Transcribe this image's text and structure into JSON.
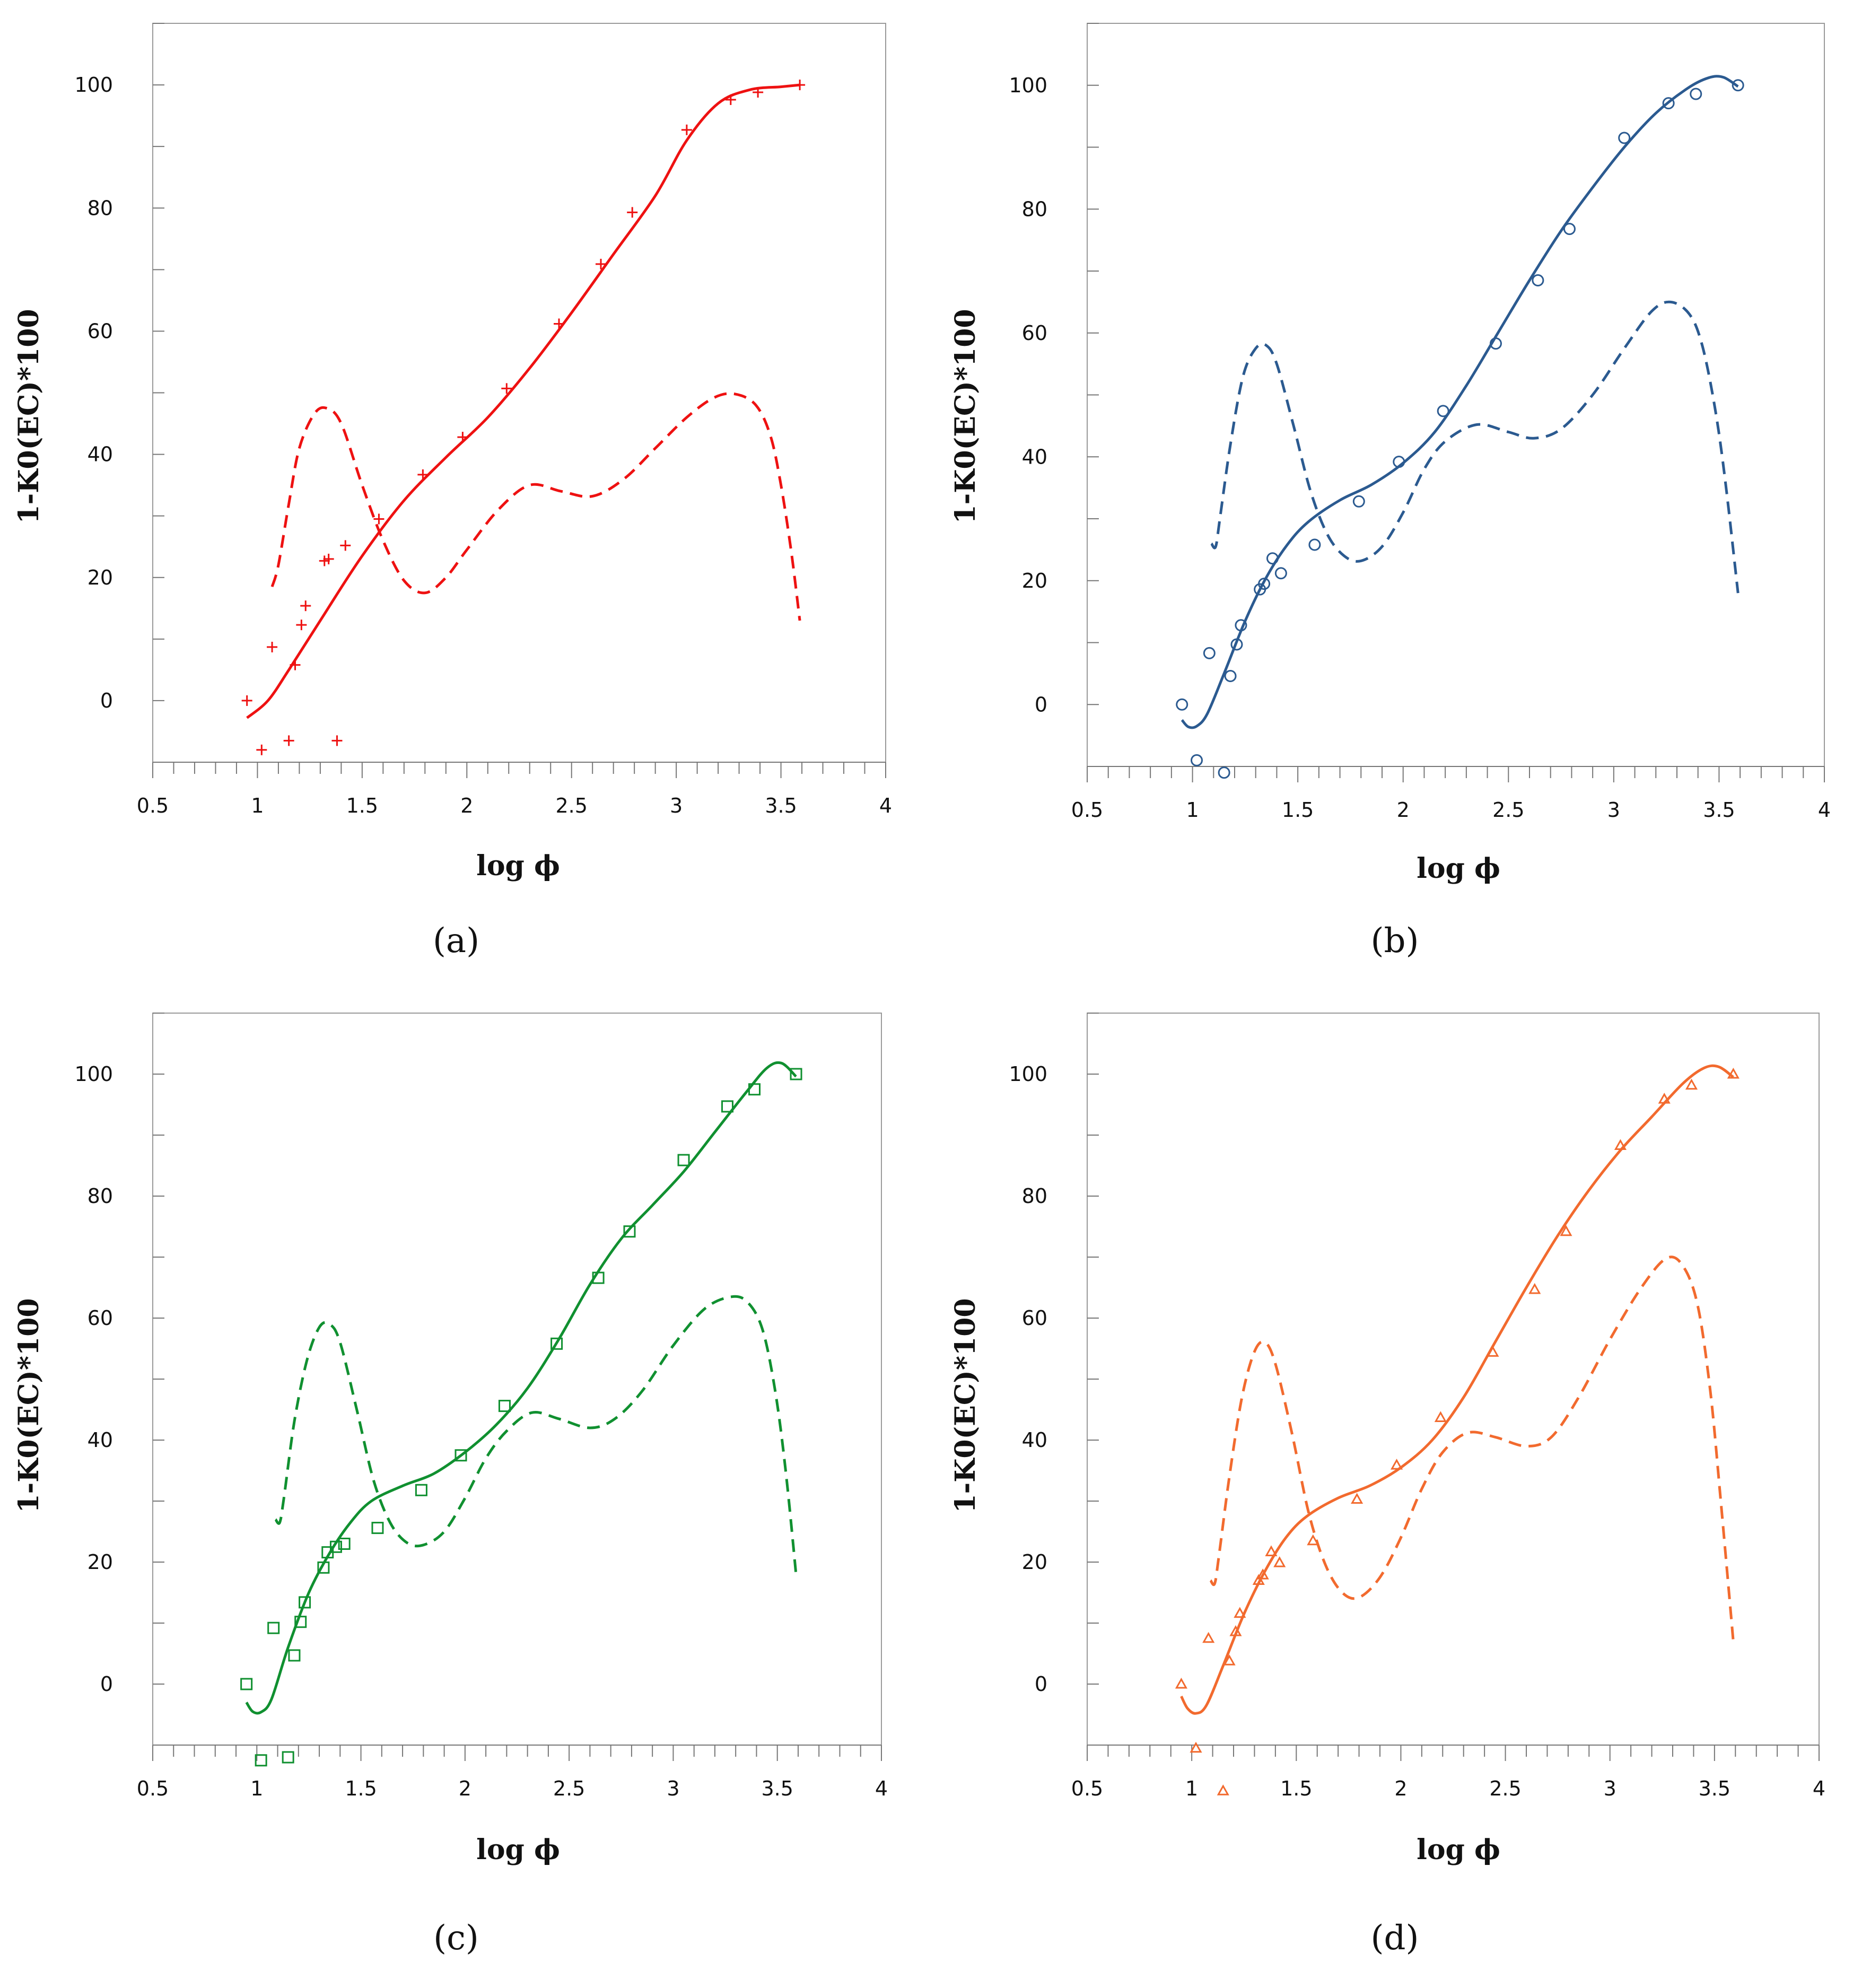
{
  "chart_data": [
    {
      "type": "scatter",
      "panel_label": "(a)",
      "xlabel": "log ϕ",
      "ylabel": "1-K0(EC)*100",
      "xlim": [
        0.5,
        4
      ],
      "ylim": [
        -10,
        110
      ],
      "x_ticks": [
        "0.5",
        "1",
        "1.5",
        "2",
        "2.5",
        "3",
        "3.5",
        "4"
      ],
      "y_ticks": [
        "0",
        "20",
        "40",
        "60",
        "80",
        "100"
      ],
      "color": "#ee1111",
      "marker": "plus",
      "points": [
        [
          0.95,
          0
        ],
        [
          1.02,
          -8
        ],
        [
          1.07,
          8.7
        ],
        [
          1.15,
          -6.5
        ],
        [
          1.18,
          5.8
        ],
        [
          1.21,
          12.3
        ],
        [
          1.23,
          15.4
        ],
        [
          1.32,
          22.7
        ],
        [
          1.34,
          23
        ],
        [
          1.38,
          -6.5
        ],
        [
          1.42,
          25.2
        ],
        [
          1.58,
          29.5
        ],
        [
          1.79,
          36.7
        ],
        [
          1.98,
          42.8
        ],
        [
          2.19,
          50.7
        ],
        [
          2.44,
          61.2
        ],
        [
          2.64,
          70.9
        ],
        [
          2.79,
          79.3
        ],
        [
          3.05,
          92.7
        ],
        [
          3.26,
          97.6
        ],
        [
          3.39,
          98.8
        ],
        [
          3.59,
          100
        ]
      ],
      "fit_curve": [
        [
          0.95,
          -2.8
        ],
        [
          1.05,
          0
        ],
        [
          1.15,
          5
        ],
        [
          1.3,
          13
        ],
        [
          1.5,
          23.5
        ],
        [
          1.7,
          32.5
        ],
        [
          1.9,
          39.5
        ],
        [
          2.1,
          46
        ],
        [
          2.3,
          54
        ],
        [
          2.5,
          63
        ],
        [
          2.7,
          72.5
        ],
        [
          2.9,
          82
        ],
        [
          3.05,
          91
        ],
        [
          3.2,
          97
        ],
        [
          3.35,
          99.2
        ],
        [
          3.5,
          99.7
        ],
        [
          3.59,
          100
        ]
      ],
      "derivative_curve": [
        [
          1.07,
          18.5
        ],
        [
          1.1,
          22
        ],
        [
          1.15,
          32
        ],
        [
          1.2,
          41
        ],
        [
          1.27,
          46.5
        ],
        [
          1.33,
          47.5
        ],
        [
          1.4,
          45
        ],
        [
          1.5,
          35
        ],
        [
          1.6,
          26
        ],
        [
          1.7,
          19.5
        ],
        [
          1.8,
          17.5
        ],
        [
          1.9,
          20
        ],
        [
          2.0,
          24.5
        ],
        [
          2.15,
          31
        ],
        [
          2.3,
          35
        ],
        [
          2.45,
          34
        ],
        [
          2.6,
          33.2
        ],
        [
          2.75,
          36
        ],
        [
          2.9,
          41
        ],
        [
          3.05,
          46
        ],
        [
          3.18,
          49.2
        ],
        [
          3.28,
          49.8
        ],
        [
          3.38,
          48
        ],
        [
          3.45,
          43
        ],
        [
          3.5,
          35
        ],
        [
          3.55,
          24
        ],
        [
          3.59,
          13
        ]
      ]
    },
    {
      "type": "scatter",
      "panel_label": "(b)",
      "xlabel": "log ϕ",
      "ylabel": "1-K0(EC)*100",
      "xlim": [
        0.5,
        4
      ],
      "ylim": [
        -10,
        110
      ],
      "x_ticks": [
        "0.5",
        "1",
        "1.5",
        "2",
        "2.5",
        "3",
        "3.5",
        "4"
      ],
      "y_ticks": [
        "0",
        "20",
        "40",
        "60",
        "80",
        "100"
      ],
      "color": "#2b5a90",
      "marker": "circle",
      "points": [
        [
          0.95,
          0
        ],
        [
          1.02,
          -9
        ],
        [
          1.08,
          8.3
        ],
        [
          1.15,
          -11
        ],
        [
          1.18,
          4.6
        ],
        [
          1.21,
          9.7
        ],
        [
          1.23,
          12.8
        ],
        [
          1.32,
          18.6
        ],
        [
          1.34,
          19.5
        ],
        [
          1.38,
          23.6
        ],
        [
          1.42,
          21.2
        ],
        [
          1.58,
          25.8
        ],
        [
          1.79,
          32.8
        ],
        [
          1.98,
          39.2
        ],
        [
          2.19,
          47.4
        ],
        [
          2.44,
          58.3
        ],
        [
          2.64,
          68.5
        ],
        [
          2.79,
          76.8
        ],
        [
          3.05,
          91.5
        ],
        [
          3.26,
          97.1
        ],
        [
          3.39,
          98.6
        ],
        [
          3.59,
          100
        ]
      ],
      "fit_curve": [
        [
          0.95,
          -2.5
        ],
        [
          0.98,
          -3.6
        ],
        [
          1.02,
          -3.5
        ],
        [
          1.07,
          -1.5
        ],
        [
          1.15,
          5
        ],
        [
          1.25,
          13.5
        ],
        [
          1.35,
          20.5
        ],
        [
          1.45,
          25.8
        ],
        [
          1.55,
          29.5
        ],
        [
          1.7,
          33
        ],
        [
          1.85,
          35.5
        ],
        [
          2.0,
          39
        ],
        [
          2.15,
          44
        ],
        [
          2.3,
          51.5
        ],
        [
          2.45,
          60
        ],
        [
          2.6,
          68.5
        ],
        [
          2.75,
          76.5
        ],
        [
          2.9,
          83.5
        ],
        [
          3.05,
          90
        ],
        [
          3.2,
          95.5
        ],
        [
          3.35,
          99.5
        ],
        [
          3.45,
          101.2
        ],
        [
          3.52,
          101.3
        ],
        [
          3.59,
          99.8
        ]
      ],
      "derivative_curve": [
        [
          1.09,
          26
        ],
        [
          1.11,
          25.5
        ],
        [
          1.13,
          30
        ],
        [
          1.18,
          42
        ],
        [
          1.24,
          53
        ],
        [
          1.3,
          57.5
        ],
        [
          1.35,
          58
        ],
        [
          1.4,
          55
        ],
        [
          1.48,
          45
        ],
        [
          1.56,
          34.5
        ],
        [
          1.64,
          27.5
        ],
        [
          1.72,
          24
        ],
        [
          1.8,
          23.2
        ],
        [
          1.9,
          25.5
        ],
        [
          2.0,
          31
        ],
        [
          2.1,
          38
        ],
        [
          2.2,
          42.5
        ],
        [
          2.35,
          45.2
        ],
        [
          2.5,
          44
        ],
        [
          2.62,
          43
        ],
        [
          2.75,
          44.5
        ],
        [
          2.9,
          50
        ],
        [
          3.05,
          57.5
        ],
        [
          3.18,
          63.5
        ],
        [
          3.27,
          65
        ],
        [
          3.36,
          63
        ],
        [
          3.42,
          58
        ],
        [
          3.48,
          48
        ],
        [
          3.53,
          36
        ],
        [
          3.59,
          18
        ]
      ]
    },
    {
      "type": "scatter",
      "panel_label": "(c)",
      "xlabel": "log ϕ",
      "ylabel": "1-K0(EC)*100",
      "xlim": [
        0.5,
        4
      ],
      "ylim": [
        -10,
        110
      ],
      "x_ticks": [
        "0.5",
        "1",
        "1.5",
        "2",
        "2.5",
        "3",
        "3.5",
        "4"
      ],
      "y_ticks": [
        "0",
        "20",
        "40",
        "60",
        "80",
        "100"
      ],
      "color": "#109030",
      "marker": "square",
      "points": [
        [
          0.95,
          0
        ],
        [
          1.02,
          -12.5
        ],
        [
          1.08,
          9.2
        ],
        [
          1.15,
          -12
        ],
        [
          1.18,
          4.7
        ],
        [
          1.21,
          10.2
        ],
        [
          1.23,
          13.4
        ],
        [
          1.32,
          19.1
        ],
        [
          1.34,
          21.6
        ],
        [
          1.38,
          22.5
        ],
        [
          1.42,
          23
        ],
        [
          1.58,
          25.6
        ],
        [
          1.79,
          31.8
        ],
        [
          1.98,
          37.5
        ],
        [
          2.19,
          45.6
        ],
        [
          2.44,
          55.8
        ],
        [
          2.64,
          66.6
        ],
        [
          2.79,
          74.2
        ],
        [
          3.05,
          85.9
        ],
        [
          3.26,
          94.7
        ],
        [
          3.39,
          97.5
        ],
        [
          3.59,
          100
        ]
      ],
      "fit_curve": [
        [
          0.95,
          -3
        ],
        [
          0.98,
          -4.5
        ],
        [
          1.02,
          -4.6
        ],
        [
          1.07,
          -2.5
        ],
        [
          1.15,
          6
        ],
        [
          1.25,
          15
        ],
        [
          1.35,
          21.5
        ],
        [
          1.45,
          26.5
        ],
        [
          1.55,
          30
        ],
        [
          1.7,
          32.5
        ],
        [
          1.85,
          34.5
        ],
        [
          2.0,
          38
        ],
        [
          2.15,
          42.5
        ],
        [
          2.3,
          48.5
        ],
        [
          2.45,
          56.5
        ],
        [
          2.6,
          65.5
        ],
        [
          2.75,
          73
        ],
        [
          2.9,
          78.5
        ],
        [
          3.05,
          84
        ],
        [
          3.2,
          90.5
        ],
        [
          3.35,
          97
        ],
        [
          3.45,
          101
        ],
        [
          3.52,
          101.8
        ],
        [
          3.59,
          99.6
        ]
      ],
      "derivative_curve": [
        [
          1.09,
          27
        ],
        [
          1.11,
          26.5
        ],
        [
          1.13,
          30.5
        ],
        [
          1.18,
          43
        ],
        [
          1.24,
          53
        ],
        [
          1.3,
          58.5
        ],
        [
          1.35,
          59
        ],
        [
          1.4,
          56
        ],
        [
          1.48,
          45
        ],
        [
          1.56,
          33.5
        ],
        [
          1.64,
          26.5
        ],
        [
          1.72,
          23.2
        ],
        [
          1.8,
          22.8
        ],
        [
          1.9,
          25
        ],
        [
          2.0,
          30.5
        ],
        [
          2.1,
          37
        ],
        [
          2.2,
          41.5
        ],
        [
          2.32,
          44.5
        ],
        [
          2.45,
          43.5
        ],
        [
          2.6,
          42
        ],
        [
          2.72,
          43.5
        ],
        [
          2.85,
          48
        ],
        [
          3.0,
          55.5
        ],
        [
          3.15,
          61.5
        ],
        [
          3.28,
          63.5
        ],
        [
          3.36,
          62.5
        ],
        [
          3.43,
          58
        ],
        [
          3.49,
          48
        ],
        [
          3.54,
          35
        ],
        [
          3.59,
          18
        ]
      ]
    },
    {
      "type": "scatter",
      "panel_label": "(d)",
      "xlabel": "log ϕ",
      "ylabel": "1-K0(EC)*100",
      "xlim": [
        0.5,
        4
      ],
      "ylim": [
        -10,
        110
      ],
      "x_ticks": [
        "0.5",
        "1",
        "1.5",
        "2",
        "2.5",
        "3",
        "3.5",
        "4"
      ],
      "y_ticks": [
        "0",
        "20",
        "40",
        "60",
        "80",
        "100"
      ],
      "color": "#f26a2e",
      "marker": "triangle",
      "points": [
        [
          0.95,
          0
        ],
        [
          1.02,
          -10.5
        ],
        [
          1.08,
          7.5
        ],
        [
          1.15,
          -17.5
        ],
        [
          1.18,
          3.8
        ],
        [
          1.21,
          8.6
        ],
        [
          1.23,
          11.6
        ],
        [
          1.32,
          17
        ],
        [
          1.34,
          17.9
        ],
        [
          1.38,
          21.7
        ],
        [
          1.42,
          19.9
        ],
        [
          1.58,
          23.5
        ],
        [
          1.79,
          30.3
        ],
        [
          1.98,
          35.9
        ],
        [
          2.19,
          43.7
        ],
        [
          2.44,
          54.4
        ],
        [
          2.64,
          64.7
        ],
        [
          2.79,
          74.2
        ],
        [
          3.05,
          88.3
        ],
        [
          3.26,
          95.9
        ],
        [
          3.39,
          98.2
        ],
        [
          3.59,
          100
        ]
      ],
      "fit_curve": [
        [
          0.95,
          -2
        ],
        [
          0.98,
          -4
        ],
        [
          1.02,
          -4.8
        ],
        [
          1.07,
          -3.5
        ],
        [
          1.15,
          3
        ],
        [
          1.25,
          11.5
        ],
        [
          1.35,
          18.5
        ],
        [
          1.45,
          24
        ],
        [
          1.55,
          27.5
        ],
        [
          1.7,
          30.5
        ],
        [
          1.85,
          32.5
        ],
        [
          2.0,
          35.5
        ],
        [
          2.15,
          40
        ],
        [
          2.3,
          47
        ],
        [
          2.45,
          56
        ],
        [
          2.6,
          65
        ],
        [
          2.75,
          73.5
        ],
        [
          2.9,
          81
        ],
        [
          3.05,
          87.5
        ],
        [
          3.2,
          93
        ],
        [
          3.35,
          98.5
        ],
        [
          3.45,
          101
        ],
        [
          3.52,
          101.2
        ],
        [
          3.59,
          99.5
        ]
      ],
      "derivative_curve": [
        [
          1.09,
          17
        ],
        [
          1.11,
          16.5
        ],
        [
          1.13,
          21
        ],
        [
          1.18,
          34
        ],
        [
          1.24,
          47
        ],
        [
          1.3,
          54.5
        ],
        [
          1.35,
          56
        ],
        [
          1.4,
          52.5
        ],
        [
          1.48,
          41
        ],
        [
          1.56,
          28
        ],
        [
          1.64,
          19.5
        ],
        [
          1.72,
          15
        ],
        [
          1.8,
          14.2
        ],
        [
          1.9,
          17.5
        ],
        [
          2.0,
          24
        ],
        [
          2.1,
          32
        ],
        [
          2.2,
          38
        ],
        [
          2.32,
          41.2
        ],
        [
          2.45,
          40.5
        ],
        [
          2.6,
          39
        ],
        [
          2.72,
          40.5
        ],
        [
          2.85,
          47
        ],
        [
          3.0,
          56.5
        ],
        [
          3.15,
          65
        ],
        [
          3.27,
          69.8
        ],
        [
          3.35,
          68.5
        ],
        [
          3.42,
          62
        ],
        [
          3.48,
          48
        ],
        [
          3.53,
          30
        ],
        [
          3.59,
          7
        ]
      ]
    }
  ]
}
